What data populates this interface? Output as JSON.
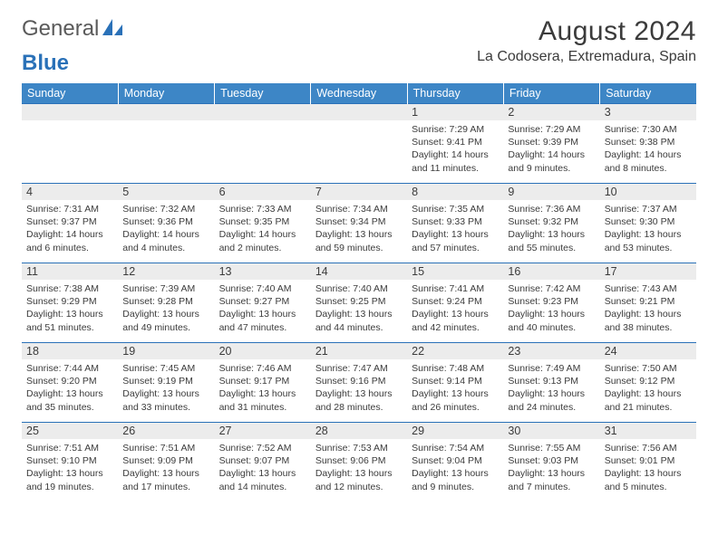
{
  "brand": {
    "part1": "General",
    "part2": "Blue"
  },
  "title": "August 2024",
  "location": "La Codosera, Extremadura, Spain",
  "colors": {
    "header_bg": "#3d86c6",
    "accent": "#2a71b8",
    "daynum_bg": "#ececec",
    "text": "#3b3b3b"
  },
  "day_labels": [
    "Sunday",
    "Monday",
    "Tuesday",
    "Wednesday",
    "Thursday",
    "Friday",
    "Saturday"
  ],
  "weeks": [
    [
      null,
      null,
      null,
      null,
      {
        "n": "1",
        "sr": "Sunrise: 7:29 AM",
        "ss": "Sunset: 9:41 PM",
        "dl": "Daylight: 14 hours and 11 minutes."
      },
      {
        "n": "2",
        "sr": "Sunrise: 7:29 AM",
        "ss": "Sunset: 9:39 PM",
        "dl": "Daylight: 14 hours and 9 minutes."
      },
      {
        "n": "3",
        "sr": "Sunrise: 7:30 AM",
        "ss": "Sunset: 9:38 PM",
        "dl": "Daylight: 14 hours and 8 minutes."
      }
    ],
    [
      {
        "n": "4",
        "sr": "Sunrise: 7:31 AM",
        "ss": "Sunset: 9:37 PM",
        "dl": "Daylight: 14 hours and 6 minutes."
      },
      {
        "n": "5",
        "sr": "Sunrise: 7:32 AM",
        "ss": "Sunset: 9:36 PM",
        "dl": "Daylight: 14 hours and 4 minutes."
      },
      {
        "n": "6",
        "sr": "Sunrise: 7:33 AM",
        "ss": "Sunset: 9:35 PM",
        "dl": "Daylight: 14 hours and 2 minutes."
      },
      {
        "n": "7",
        "sr": "Sunrise: 7:34 AM",
        "ss": "Sunset: 9:34 PM",
        "dl": "Daylight: 13 hours and 59 minutes."
      },
      {
        "n": "8",
        "sr": "Sunrise: 7:35 AM",
        "ss": "Sunset: 9:33 PM",
        "dl": "Daylight: 13 hours and 57 minutes."
      },
      {
        "n": "9",
        "sr": "Sunrise: 7:36 AM",
        "ss": "Sunset: 9:32 PM",
        "dl": "Daylight: 13 hours and 55 minutes."
      },
      {
        "n": "10",
        "sr": "Sunrise: 7:37 AM",
        "ss": "Sunset: 9:30 PM",
        "dl": "Daylight: 13 hours and 53 minutes."
      }
    ],
    [
      {
        "n": "11",
        "sr": "Sunrise: 7:38 AM",
        "ss": "Sunset: 9:29 PM",
        "dl": "Daylight: 13 hours and 51 minutes."
      },
      {
        "n": "12",
        "sr": "Sunrise: 7:39 AM",
        "ss": "Sunset: 9:28 PM",
        "dl": "Daylight: 13 hours and 49 minutes."
      },
      {
        "n": "13",
        "sr": "Sunrise: 7:40 AM",
        "ss": "Sunset: 9:27 PM",
        "dl": "Daylight: 13 hours and 47 minutes."
      },
      {
        "n": "14",
        "sr": "Sunrise: 7:40 AM",
        "ss": "Sunset: 9:25 PM",
        "dl": "Daylight: 13 hours and 44 minutes."
      },
      {
        "n": "15",
        "sr": "Sunrise: 7:41 AM",
        "ss": "Sunset: 9:24 PM",
        "dl": "Daylight: 13 hours and 42 minutes."
      },
      {
        "n": "16",
        "sr": "Sunrise: 7:42 AM",
        "ss": "Sunset: 9:23 PM",
        "dl": "Daylight: 13 hours and 40 minutes."
      },
      {
        "n": "17",
        "sr": "Sunrise: 7:43 AM",
        "ss": "Sunset: 9:21 PM",
        "dl": "Daylight: 13 hours and 38 minutes."
      }
    ],
    [
      {
        "n": "18",
        "sr": "Sunrise: 7:44 AM",
        "ss": "Sunset: 9:20 PM",
        "dl": "Daylight: 13 hours and 35 minutes."
      },
      {
        "n": "19",
        "sr": "Sunrise: 7:45 AM",
        "ss": "Sunset: 9:19 PM",
        "dl": "Daylight: 13 hours and 33 minutes."
      },
      {
        "n": "20",
        "sr": "Sunrise: 7:46 AM",
        "ss": "Sunset: 9:17 PM",
        "dl": "Daylight: 13 hours and 31 minutes."
      },
      {
        "n": "21",
        "sr": "Sunrise: 7:47 AM",
        "ss": "Sunset: 9:16 PM",
        "dl": "Daylight: 13 hours and 28 minutes."
      },
      {
        "n": "22",
        "sr": "Sunrise: 7:48 AM",
        "ss": "Sunset: 9:14 PM",
        "dl": "Daylight: 13 hours and 26 minutes."
      },
      {
        "n": "23",
        "sr": "Sunrise: 7:49 AM",
        "ss": "Sunset: 9:13 PM",
        "dl": "Daylight: 13 hours and 24 minutes."
      },
      {
        "n": "24",
        "sr": "Sunrise: 7:50 AM",
        "ss": "Sunset: 9:12 PM",
        "dl": "Daylight: 13 hours and 21 minutes."
      }
    ],
    [
      {
        "n": "25",
        "sr": "Sunrise: 7:51 AM",
        "ss": "Sunset: 9:10 PM",
        "dl": "Daylight: 13 hours and 19 minutes."
      },
      {
        "n": "26",
        "sr": "Sunrise: 7:51 AM",
        "ss": "Sunset: 9:09 PM",
        "dl": "Daylight: 13 hours and 17 minutes."
      },
      {
        "n": "27",
        "sr": "Sunrise: 7:52 AM",
        "ss": "Sunset: 9:07 PM",
        "dl": "Daylight: 13 hours and 14 minutes."
      },
      {
        "n": "28",
        "sr": "Sunrise: 7:53 AM",
        "ss": "Sunset: 9:06 PM",
        "dl": "Daylight: 13 hours and 12 minutes."
      },
      {
        "n": "29",
        "sr": "Sunrise: 7:54 AM",
        "ss": "Sunset: 9:04 PM",
        "dl": "Daylight: 13 hours and 9 minutes."
      },
      {
        "n": "30",
        "sr": "Sunrise: 7:55 AM",
        "ss": "Sunset: 9:03 PM",
        "dl": "Daylight: 13 hours and 7 minutes."
      },
      {
        "n": "31",
        "sr": "Sunrise: 7:56 AM",
        "ss": "Sunset: 9:01 PM",
        "dl": "Daylight: 13 hours and 5 minutes."
      }
    ]
  ]
}
